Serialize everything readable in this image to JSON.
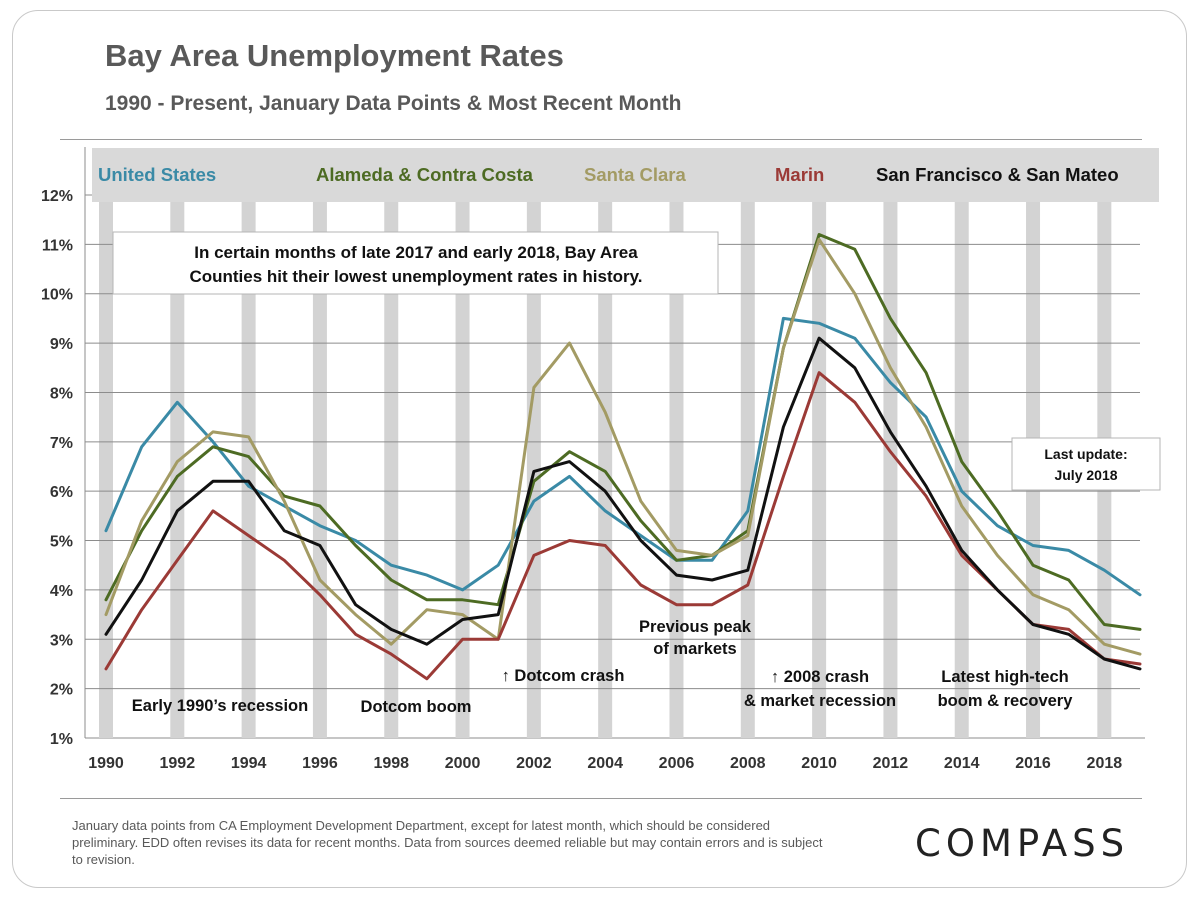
{
  "footnote": "January data points from CA Employment Development Department, except for latest month, which should be considered preliminary. EDD often revises its data for recent months. Data from sources deemed reliable but may contain errors and is subject to revision.",
  "logo": "COMPASS",
  "chart_data": {
    "type": "line",
    "title": "Bay Area Unemployment Rates",
    "subtitle": "1990 - Present, January Data Points & Most Recent Month",
    "xlabel": "",
    "ylabel": "",
    "ylim": [
      1,
      12
    ],
    "y_ticks": [
      "1%",
      "2%",
      "3%",
      "4%",
      "5%",
      "6%",
      "7%",
      "8%",
      "9%",
      "10%",
      "11%",
      "12%"
    ],
    "x_ticks": [
      "1990",
      "1992",
      "1994",
      "1996",
      "1998",
      "2000",
      "2002",
      "2004",
      "2006",
      "2008",
      "2010",
      "2012",
      "2014",
      "2016",
      "2018"
    ],
    "grid": "horizontal",
    "legend_position": "top",
    "x": [
      1990,
      1991,
      1992,
      1993,
      1994,
      1995,
      1996,
      1997,
      1998,
      1999,
      2000,
      2001,
      2002,
      2003,
      2004,
      2005,
      2006,
      2007,
      2008,
      2009,
      2010,
      2011,
      2012,
      2013,
      2014,
      2015,
      2016,
      2017,
      2018,
      2019
    ],
    "series": [
      {
        "name": "United States",
        "color": "#3a8aa6",
        "values": [
          5.2,
          6.9,
          7.8,
          7.0,
          6.1,
          5.7,
          5.3,
          5.0,
          4.5,
          4.3,
          4.0,
          4.5,
          5.8,
          6.3,
          5.6,
          5.1,
          4.6,
          4.6,
          5.6,
          9.5,
          9.4,
          9.1,
          8.2,
          7.5,
          6.0,
          5.3,
          4.9,
          4.8,
          4.4,
          3.9
        ]
      },
      {
        "name": "Alameda & Contra Costa",
        "color": "#4d6b23",
        "values": [
          3.8,
          5.2,
          6.3,
          6.9,
          6.7,
          5.9,
          5.7,
          4.9,
          4.2,
          3.8,
          3.8,
          3.7,
          6.2,
          6.8,
          6.4,
          5.4,
          4.6,
          4.7,
          5.2,
          8.9,
          11.2,
          10.9,
          9.5,
          8.4,
          6.6,
          5.6,
          4.5,
          4.2,
          3.3,
          3.2
        ]
      },
      {
        "name": "Santa Clara",
        "color": "#a39b64",
        "values": [
          3.5,
          5.4,
          6.6,
          7.2,
          7.1,
          5.8,
          4.2,
          3.5,
          2.9,
          3.6,
          3.5,
          3.0,
          8.1,
          9.0,
          7.6,
          5.8,
          4.8,
          4.7,
          5.1,
          8.9,
          11.1,
          10.0,
          8.5,
          7.3,
          5.7,
          4.7,
          3.9,
          3.6,
          2.9,
          2.7
        ]
      },
      {
        "name": "Marin",
        "color": "#9b3a36",
        "values": [
          2.4,
          3.6,
          4.6,
          5.6,
          5.1,
          4.6,
          3.9,
          3.1,
          2.7,
          2.2,
          3.0,
          3.0,
          4.7,
          5.0,
          4.9,
          4.1,
          3.7,
          3.7,
          4.1,
          6.3,
          8.4,
          7.8,
          6.8,
          5.9,
          4.7,
          4.0,
          3.3,
          3.2,
          2.6,
          2.5
        ]
      },
      {
        "name": "San Francisco & San Mateo",
        "color": "#111111",
        "values": [
          3.1,
          4.2,
          5.6,
          6.2,
          6.2,
          5.2,
          4.9,
          3.7,
          3.2,
          2.9,
          3.4,
          3.5,
          6.4,
          6.6,
          6.0,
          5.0,
          4.3,
          4.2,
          4.4,
          7.3,
          9.1,
          8.5,
          7.2,
          6.1,
          4.8,
          4.0,
          3.3,
          3.1,
          2.6,
          2.4
        ]
      }
    ],
    "annotations": {
      "note_box": [
        "In certain months of late 2017 and early 2018, Bay Area",
        "Counties hit their lowest unemployment rates in history."
      ],
      "last_update": [
        "Last update:",
        "July 2018"
      ],
      "early_recession": "Early 1990’s recession",
      "dotcom_boom": "Dotcom boom",
      "dotcom_crash": "↑ Dotcom crash",
      "previous_peak": [
        "Previous peak",
        "of  markets"
      ],
      "crash_2008": [
        "↑ 2008 crash",
        "& market recession"
      ],
      "latest_boom": [
        "Latest high-tech",
        "boom & recovery"
      ]
    }
  }
}
